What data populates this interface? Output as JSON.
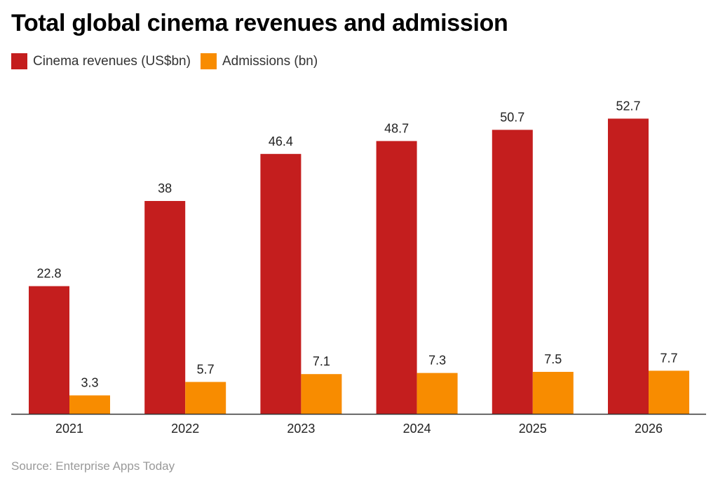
{
  "chart_data": {
    "type": "bar",
    "title": "Total global cinema revenues and admission",
    "categories": [
      "2021",
      "2022",
      "2023",
      "2024",
      "2025",
      "2026"
    ],
    "series": [
      {
        "name": "Cinema revenues (US$bn)",
        "color": "#c41e1e",
        "values": [
          22.8,
          38,
          46.4,
          48.7,
          50.7,
          52.7
        ]
      },
      {
        "name": "Admissions (bn)",
        "color": "#f88c00",
        "values": [
          3.3,
          5.7,
          7.1,
          7.3,
          7.5,
          7.7
        ]
      }
    ],
    "xlabel": "",
    "ylabel": "",
    "ylim": [
      0,
      60
    ],
    "grid": false,
    "legend": "top-left",
    "data_labels": true
  },
  "source": "Source: Enterprise Apps Today"
}
